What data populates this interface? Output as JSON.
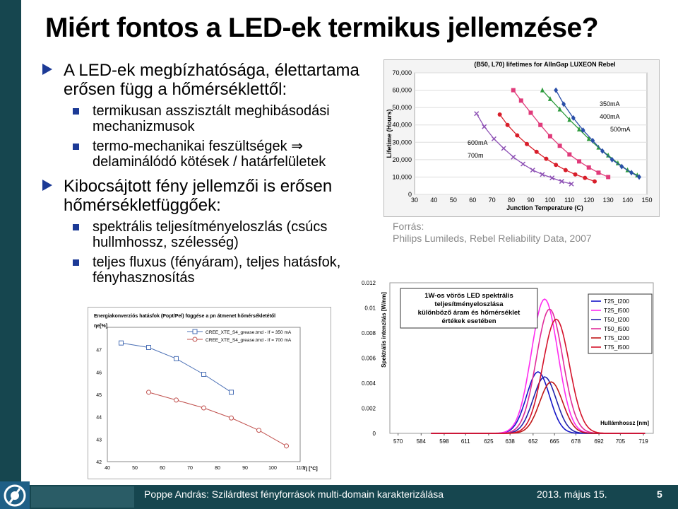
{
  "slide": {
    "title": "Miért fontos a LED-ek termikus jellemzése?",
    "bullets": [
      {
        "text": "A LED-ek megbízhatósága, élettartama erősen függ a hőmérséklettől:",
        "sub": [
          "termikusan asszisztált meghibásodási mechanizmusok",
          "termo-mechanikai feszültségek ⇒ delaminálódó kötések / határfelületek"
        ]
      },
      {
        "text": "Kibocsájtott fény jellemzői is erősen hőmérsékletfüggőek:",
        "sub": [
          "spektrális teljesítményeloszlás (csúcs hullmhossz, szélesség)",
          "teljes fluxus (fényáram), teljes hatásfok, fényhasznosítás"
        ]
      }
    ],
    "source": {
      "label": "Forrás:",
      "text": "Philips Lumileds, Rebel Reliability Data, 2007"
    }
  },
  "footer": {
    "text": "Poppe András: Szilárdtest fényforrások multi-domain karakterizálása",
    "date": "2013. május 15.",
    "page": "5"
  },
  "colors": {
    "accent": "#1c3a96",
    "bar": "#16464f"
  },
  "chart_data": [
    {
      "type": "line",
      "title": "(B50, L70) lifetimes for AlInGap LUXEON Rebel",
      "xlabel": "Junction Temperature (C)",
      "ylabel": "Lifetime (Hours)",
      "xticks": [
        "30",
        "40",
        "50",
        "60",
        "70",
        "80",
        "90",
        "100",
        "110",
        "120",
        "130",
        "140",
        "150"
      ],
      "yticks": [
        "0",
        "10,000",
        "20,000",
        "30,000",
        "40,000",
        "50,000",
        "60,000",
        "70,000"
      ],
      "xlim": [
        30,
        150
      ],
      "ylim": [
        0,
        70000
      ],
      "series": [
        {
          "name": "350mA",
          "color": "#2e9b3e",
          "marker": "tri",
          "x": [
            96,
            100,
            105,
            110,
            115,
            120,
            125,
            130,
            135,
            140,
            145
          ],
          "y": [
            60000,
            55000,
            49000,
            43000,
            37500,
            32000,
            27000,
            22500,
            18000,
            14000,
            11000
          ]
        },
        {
          "name": "400mA",
          "color": "#2a4fa8",
          "marker": "dia",
          "x": [
            103,
            107,
            112,
            117,
            122,
            127,
            132,
            137,
            142,
            146
          ],
          "y": [
            60000,
            52000,
            44000,
            37000,
            31000,
            25000,
            20000,
            16000,
            12500,
            10000
          ]
        },
        {
          "name": "500mA",
          "color": "#e03a7a",
          "marker": "sq",
          "x": [
            81,
            85,
            90,
            95,
            100,
            105,
            110,
            115,
            120,
            125,
            130
          ],
          "y": [
            60000,
            54000,
            47000,
            40000,
            33500,
            28000,
            23000,
            19000,
            15500,
            12500,
            10000
          ]
        },
        {
          "name": "600mA",
          "color": "#d81e2a",
          "marker": "circ",
          "x": [
            74,
            78,
            83,
            88,
            93,
            98,
            103,
            108,
            113,
            118,
            123
          ],
          "y": [
            46000,
            40000,
            34000,
            29000,
            24500,
            20500,
            17000,
            14000,
            11500,
            9500,
            7500
          ]
        },
        {
          "name": "700mA",
          "color": "#8e52b5",
          "marker": "x",
          "x": [
            62,
            66,
            71,
            76,
            81,
            86,
            91,
            96,
            101,
            106,
            111
          ],
          "y": [
            46500,
            39000,
            32000,
            26500,
            21500,
            17500,
            14000,
            11500,
            9500,
            7500,
            6000
          ]
        }
      ],
      "labels": [
        "350mA",
        "400mA",
        "500mA",
        "600mA",
        "700m"
      ]
    },
    {
      "type": "line",
      "ylabel": "Spektrális intenzitás [W/nm]",
      "xlabel": "Hullámhossz [nm]",
      "annotation": "1W-os vörös LED spektrális teljesítményeloszlása különböző áram és hőmérséklet értékek esetében",
      "xticks": [
        "570",
        "584",
        "598",
        "611",
        "625",
        "638",
        "652",
        "665",
        "678",
        "692",
        "705",
        "719"
      ],
      "yticks": [
        "0",
        "0.002",
        "0.004",
        "0.006",
        "0.008",
        "0.01",
        "0.012"
      ],
      "ylim": [
        0,
        0.012
      ],
      "series": [
        {
          "name": "T25_I200",
          "color": "#1515c8",
          "peak": 655,
          "height": 0.0049,
          "width": 7
        },
        {
          "name": "T25_I500",
          "color": "#ff2bf0",
          "peak": 659,
          "height": 0.0107,
          "width": 8
        },
        {
          "name": "T50_I200",
          "color": "#2222aa",
          "peak": 659,
          "height": 0.0045,
          "width": 7
        },
        {
          "name": "T50_I500",
          "color": "#e02c9a",
          "peak": 662,
          "height": 0.0099,
          "width": 8
        },
        {
          "name": "T75_I200",
          "color": "#c01818",
          "peak": 663,
          "height": 0.0041,
          "width": 7
        },
        {
          "name": "T75_I500",
          "color": "#d4122a",
          "peak": 666,
          "height": 0.0091,
          "width": 8
        }
      ]
    },
    {
      "type": "line",
      "title": "Energiakonverziós hatásfok (Popt/Pel) függése a pn átmenet hőmérsékletétől",
      "ylabel": "ηe[%]",
      "xlabel": "Tj [°C]",
      "xticks": [
        "40",
        "50",
        "60",
        "70",
        "80",
        "90",
        "100",
        "110"
      ],
      "yticks": [
        "42",
        "43",
        "44",
        "45",
        "46",
        "47"
      ],
      "xlim": [
        40,
        110
      ],
      "ylim": [
        42,
        48
      ],
      "series": [
        {
          "name": "CREE_XTE_S4_grease.tmd - If = 350 mA",
          "color": "#4a6fb5",
          "marker": "sq",
          "x": [
            45,
            55,
            65,
            75,
            85
          ],
          "y": [
            47.3,
            47.1,
            46.6,
            45.9,
            45.1
          ]
        },
        {
          "name": "CREE_XTE_S4_grease.tmd - If = 700 mA",
          "color": "#c0504d",
          "marker": "circ",
          "x": [
            55,
            65,
            75,
            85,
            95,
            105
          ],
          "y": [
            45.1,
            44.75,
            44.4,
            43.95,
            43.4,
            42.7
          ]
        }
      ]
    }
  ]
}
